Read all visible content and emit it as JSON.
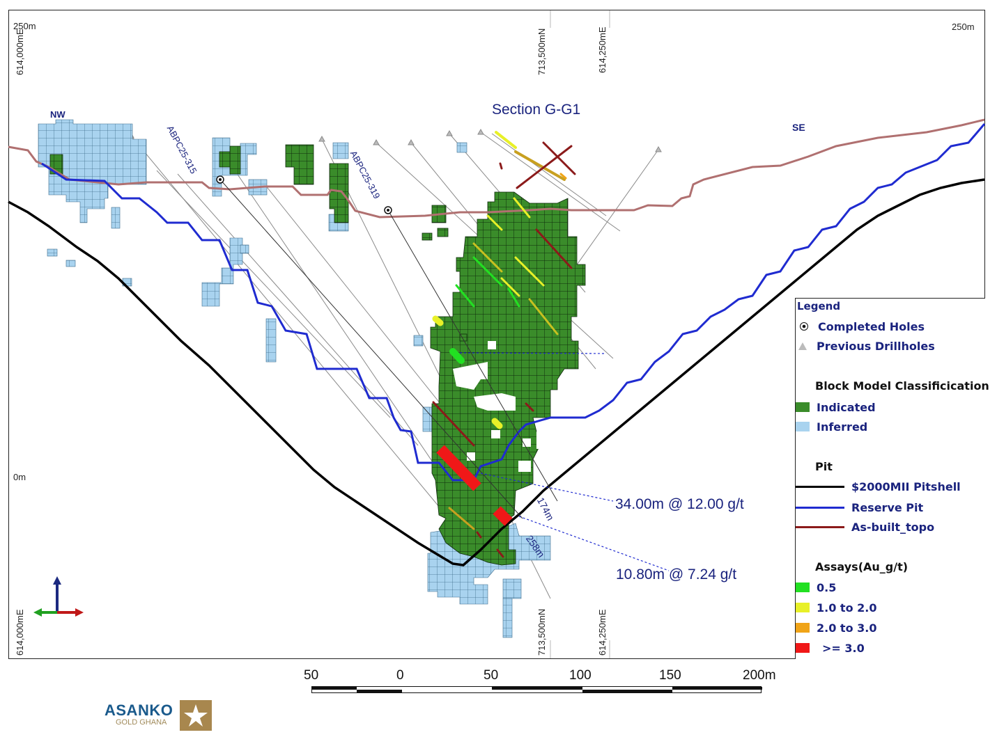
{
  "title": "Section G-G1",
  "direction_labels": {
    "left": "NW",
    "right": "SE"
  },
  "elevation_labels": {
    "top_left": "250m",
    "top_right": "250m",
    "middle_left": "0m"
  },
  "grid_labels_top": [
    "614,000mE",
    "713,500mN",
    "614,250mE"
  ],
  "grid_labels_bottom": [
    "614,000mE",
    "713,500mN",
    "614,250mE"
  ],
  "hole_names": [
    "ABPC25-315",
    "ABPC25-319"
  ],
  "intercepts": [
    {
      "text": "34.00m @ 12.00 g/t"
    },
    {
      "text": "10.80m @ 7.24 g/t"
    }
  ],
  "depth_labels": [
    "174m",
    "258m"
  ],
  "legend": {
    "title": "Legend",
    "completed_holes": "Completed Holes",
    "previous_drillholes": "Previous Drillholes",
    "block_model_heading": "Block Model Classificication",
    "indicated": "Indicated",
    "inferred": "Inferred",
    "pit_heading": "Pit",
    "pitshell": "$2000MII Pitshell",
    "reserve_pit": "Reserve Pit",
    "as_built": "As-built_topo",
    "assays_heading": "Assays(Au_g/t)",
    "assay_1": "0.5",
    "assay_2": "1.0 to 2.0",
    "assay_3": "2.0 to 3.0",
    "assay_4": ">= 3.0"
  },
  "scale_labels": [
    "50",
    "0",
    "50",
    "100",
    "150",
    "200m"
  ],
  "logo": {
    "name": "ASANKO",
    "sub": "GOLD GHANA"
  },
  "colors": {
    "indicated": "#3a8c2a",
    "inferred": "#a9d3ef",
    "pitshell": "#000000",
    "reserve_pit": "#1f2bd0",
    "topo": "#b07070",
    "assay_05": "#22e022",
    "assay_1_2": "#e8f028",
    "assay_2_3": "#f0a418",
    "assay_3": "#f01818"
  }
}
